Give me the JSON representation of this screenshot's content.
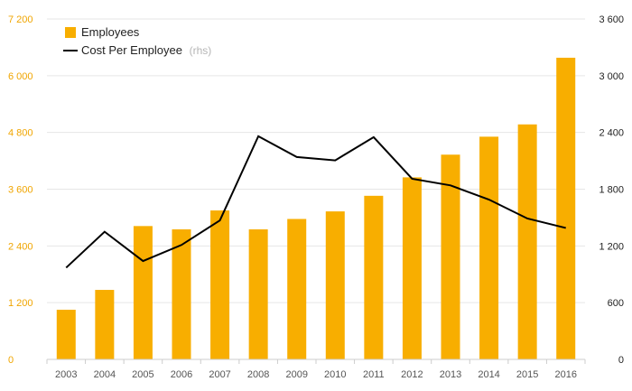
{
  "chart_data": {
    "type": "bar+line",
    "categories": [
      "2003",
      "2004",
      "2005",
      "2006",
      "2007",
      "2008",
      "2009",
      "2010",
      "2011",
      "2012",
      "2013",
      "2014",
      "2015",
      "2016"
    ],
    "series": [
      {
        "name": "Employees",
        "type": "bar",
        "axis": "left",
        "color": "#f8ae00",
        "values": [
          1050,
          1470,
          2820,
          2750,
          3150,
          2750,
          2970,
          3130,
          3460,
          3850,
          4330,
          4710,
          4970,
          6380
        ]
      },
      {
        "name": "Cost Per Employee",
        "type": "line",
        "axis": "right",
        "color": "#000000",
        "values": [
          970,
          1350,
          1040,
          1210,
          1470,
          2360,
          2140,
          2105,
          2350,
          1910,
          1840,
          1690,
          1490,
          1390
        ]
      }
    ],
    "left_axis": {
      "ylim": [
        0,
        7200
      ],
      "ticks": [
        0,
        1200,
        2400,
        3600,
        4800,
        6000,
        7200
      ],
      "tick_labels": [
        "0",
        "1 200",
        "2 400",
        "3 600",
        "4 800",
        "6 000",
        "7 200"
      ],
      "color": "#f0a500"
    },
    "right_axis": {
      "ylim": [
        0,
        3600
      ],
      "ticks": [
        0,
        600,
        1200,
        1800,
        2400,
        3000,
        3600
      ],
      "tick_labels": [
        "0",
        "600",
        "1 200",
        "1 800",
        "2 400",
        "3 000",
        "3 600"
      ],
      "color": "#222222"
    },
    "legend": {
      "position": "top-left",
      "items": [
        {
          "label": "Employees",
          "marker": "square",
          "color": "#f8ae00"
        },
        {
          "label": "Cost Per Employee",
          "suffix": "(rhs)",
          "marker": "line",
          "color": "#000000"
        }
      ]
    },
    "grid": true
  }
}
